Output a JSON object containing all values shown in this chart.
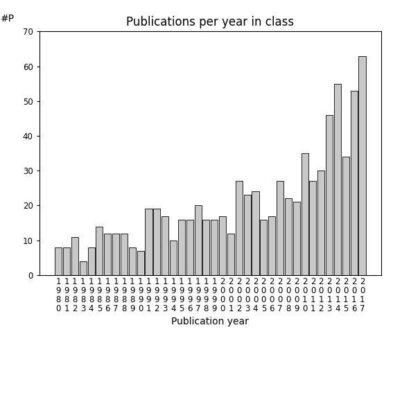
{
  "title": "Publications per year in class",
  "xlabel": "Publication year",
  "ylabel": "#P",
  "years": [
    "1980",
    "1981",
    "1982",
    "1983",
    "1984",
    "1985",
    "1986",
    "1987",
    "1988",
    "1989",
    "1990",
    "1991",
    "1992",
    "1993",
    "1994",
    "1995",
    "1996",
    "1997",
    "1998",
    "1999",
    "2000",
    "2001",
    "2002",
    "2003",
    "2004",
    "2005",
    "2006",
    "2007",
    "2008",
    "2009",
    "2010",
    "2011",
    "2012",
    "2013",
    "2014",
    "2015",
    "2016",
    "2017"
  ],
  "values": [
    8,
    8,
    11,
    4,
    8,
    14,
    12,
    12,
    12,
    8,
    7,
    19,
    19,
    17,
    10,
    16,
    16,
    20,
    16,
    16,
    17,
    12,
    27,
    23,
    24,
    16,
    17,
    27,
    22,
    21,
    35,
    27,
    30,
    46,
    55,
    34,
    53,
    63
  ],
  "bar_color": "#c8c8c8",
  "bar_edge_color": "#000000",
  "ylim": [
    0,
    70
  ],
  "yticks": [
    0,
    10,
    20,
    30,
    40,
    50,
    60,
    70
  ],
  "background_color": "#ffffff",
  "title_fontsize": 12,
  "label_fontsize": 10,
  "tick_fontsize": 8.5,
  "figsize": [
    5.67,
    5.67
  ],
  "dpi": 100
}
